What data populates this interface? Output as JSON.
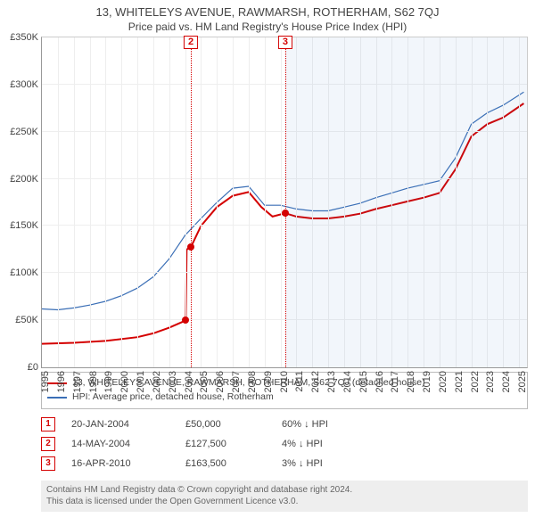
{
  "title": "13, WHITELEYS AVENUE, RAWMARSH, ROTHERHAM, S62 7QJ",
  "subtitle": "Price paid vs. HM Land Registry's House Price Index (HPI)",
  "chart": {
    "type": "line",
    "x_min": 1995,
    "x_max": 2025.5,
    "y_min": 0,
    "y_max": 350000,
    "y_ticks": [
      0,
      50000,
      100000,
      150000,
      200000,
      250000,
      300000,
      350000
    ],
    "y_tick_labels": [
      "£0",
      "£50K",
      "£100K",
      "£150K",
      "£200K",
      "£250K",
      "£300K",
      "£350K"
    ],
    "x_ticks": [
      1995,
      1996,
      1997,
      1998,
      1999,
      2000,
      2001,
      2002,
      2003,
      2004,
      2005,
      2006,
      2007,
      2008,
      2009,
      2010,
      2011,
      2012,
      2013,
      2014,
      2015,
      2016,
      2017,
      2018,
      2019,
      2020,
      2021,
      2022,
      2023,
      2024,
      2025
    ],
    "grid_color": "#eeeeee",
    "shade_from_x": 2010.3,
    "shade_color": "rgba(70,130,200,0.07)",
    "series": [
      {
        "name": "property",
        "label": "13, WHITELEYS AVENUE, RAWMARSH, ROTHERHAM, S62 7QJ (detached house)",
        "color": "#d40000",
        "width": 2,
        "points": [
          [
            1995,
            25000
          ],
          [
            1997,
            26000
          ],
          [
            1999,
            28000
          ],
          [
            2001,
            32000
          ],
          [
            2002,
            36000
          ],
          [
            2003,
            42000
          ],
          [
            2003.8,
            48000
          ],
          [
            2004.05,
            50000
          ],
          [
            2004.1,
            125000
          ],
          [
            2004.37,
            127500
          ],
          [
            2005,
            150000
          ],
          [
            2006,
            170000
          ],
          [
            2007,
            182000
          ],
          [
            2008,
            186000
          ],
          [
            2008.8,
            170000
          ],
          [
            2009.5,
            160000
          ],
          [
            2010.3,
            163500
          ],
          [
            2011,
            160000
          ],
          [
            2012,
            158000
          ],
          [
            2013,
            158000
          ],
          [
            2014,
            160000
          ],
          [
            2015,
            163000
          ],
          [
            2016,
            168000
          ],
          [
            2017,
            172000
          ],
          [
            2018,
            176000
          ],
          [
            2019,
            180000
          ],
          [
            2020,
            185000
          ],
          [
            2021,
            210000
          ],
          [
            2022,
            245000
          ],
          [
            2023,
            258000
          ],
          [
            2024,
            265000
          ],
          [
            2025.3,
            280000
          ]
        ]
      },
      {
        "name": "hpi",
        "label": "HPI: Average price, detached house, Rotherham",
        "color": "#3b6fb6",
        "width": 1.2,
        "points": [
          [
            1995,
            62000
          ],
          [
            1996,
            61000
          ],
          [
            1997,
            63000
          ],
          [
            1998,
            66000
          ],
          [
            1999,
            70000
          ],
          [
            2000,
            76000
          ],
          [
            2001,
            84000
          ],
          [
            2002,
            96000
          ],
          [
            2003,
            115000
          ],
          [
            2004,
            140000
          ],
          [
            2005,
            158000
          ],
          [
            2006,
            175000
          ],
          [
            2007,
            190000
          ],
          [
            2008,
            192000
          ],
          [
            2009,
            172000
          ],
          [
            2010,
            172000
          ],
          [
            2011,
            168000
          ],
          [
            2012,
            166000
          ],
          [
            2013,
            166000
          ],
          [
            2014,
            170000
          ],
          [
            2015,
            174000
          ],
          [
            2016,
            180000
          ],
          [
            2017,
            185000
          ],
          [
            2018,
            190000
          ],
          [
            2019,
            194000
          ],
          [
            2020,
            198000
          ],
          [
            2021,
            222000
          ],
          [
            2022,
            258000
          ],
          [
            2023,
            270000
          ],
          [
            2024,
            278000
          ],
          [
            2025.3,
            292000
          ]
        ]
      }
    ],
    "markers": [
      {
        "n": "1",
        "x": 2004.05,
        "y": 50000,
        "color": "#d40000"
      },
      {
        "n": "2",
        "x": 2004.37,
        "y": 127500,
        "color": "#d40000"
      },
      {
        "n": "3",
        "x": 2010.3,
        "y": 163500,
        "color": "#d40000"
      }
    ],
    "flags": [
      {
        "n": "2",
        "x": 2004.37,
        "color": "#d40000"
      },
      {
        "n": "3",
        "x": 2010.3,
        "color": "#d40000"
      }
    ]
  },
  "legend": [
    {
      "color": "#d40000",
      "label": "13, WHITELEYS AVENUE, RAWMARSH, ROTHERHAM, S62 7QJ (detached house)"
    },
    {
      "color": "#3b6fb6",
      "label": "HPI: Average price, detached house, Rotherham"
    }
  ],
  "events": [
    {
      "n": "1",
      "date": "20-JAN-2004",
      "price": "£50,000",
      "delta": "60% ↓ HPI",
      "color": "#d40000"
    },
    {
      "n": "2",
      "date": "14-MAY-2004",
      "price": "£127,500",
      "delta": "4% ↓ HPI",
      "color": "#d40000"
    },
    {
      "n": "3",
      "date": "16-APR-2010",
      "price": "£163,500",
      "delta": "3% ↓ HPI",
      "color": "#d40000"
    }
  ],
  "footer_line1": "Contains HM Land Registry data © Crown copyright and database right 2024.",
  "footer_line2": "This data is licensed under the Open Government Licence v3.0."
}
